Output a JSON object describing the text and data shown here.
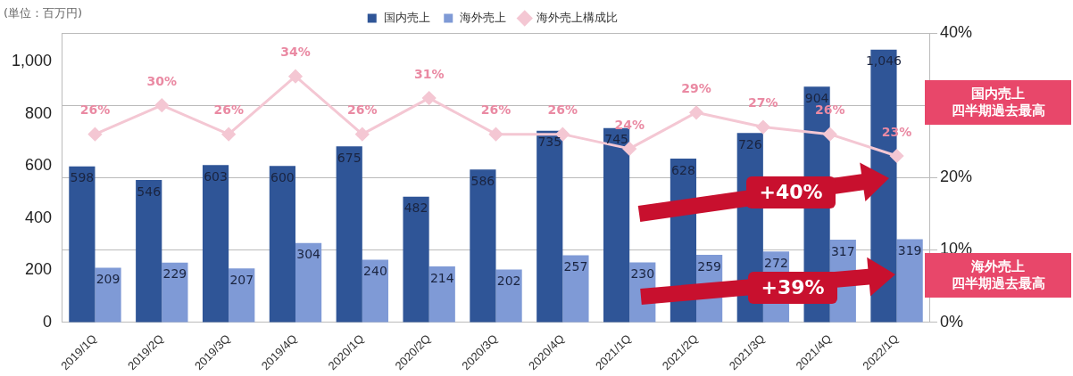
{
  "chart_data": {
    "type": "bar",
    "ylabel": "(単位：百万円)",
    "categories": [
      "2019/1Q",
      "2019/2Q",
      "2019/3Q",
      "2019/4Q",
      "2020/1Q",
      "2020/2Q",
      "2020/3Q",
      "2020/4Q",
      "2021/1Q",
      "2021/2Q",
      "2021/3Q",
      "2021/4Q",
      "2022/1Q"
    ],
    "series": [
      {
        "name": "国内売上",
        "color": "#2f5597",
        "values": [
          598,
          546,
          603,
          600,
          675,
          482,
          586,
          735,
          745,
          628,
          726,
          904,
          1046
        ],
        "value_labels": [
          "598",
          "546",
          "603",
          "600",
          "675",
          "482",
          "586",
          "735",
          "745",
          "628",
          "726",
          "904",
          "1,046"
        ]
      },
      {
        "name": "海外売上",
        "color": "#7f9ad6",
        "values": [
          209,
          229,
          207,
          304,
          240,
          214,
          202,
          257,
          230,
          259,
          272,
          317,
          319
        ],
        "value_labels": [
          "209",
          "229",
          "207",
          "304",
          "240",
          "214",
          "202",
          "257",
          "230",
          "259",
          "272",
          "317",
          "319"
        ]
      },
      {
        "name": "海外売上構成比",
        "type": "line",
        "axis": "y2",
        "color": "#f4c7d3",
        "marker": "diamond",
        "values": [
          26,
          30,
          26,
          34,
          26,
          31,
          26,
          26,
          24,
          29,
          27,
          26,
          23
        ],
        "value_labels": [
          "26%",
          "30%",
          "26%",
          "34%",
          "26%",
          "31%",
          "26%",
          "26%",
          "24%",
          "29%",
          "27%",
          "26%",
          "23%"
        ]
      }
    ],
    "ylim": [
      0,
      1110
    ],
    "yticks": [
      0,
      200,
      400,
      600,
      800,
      {
        "value": 1000,
        "label": "1,000"
      }
    ],
    "y2lim": [
      0,
      40
    ],
    "y2ticks": [
      {
        "value": 0,
        "label": "0%"
      },
      {
        "value": 10,
        "label": "10%"
      },
      {
        "value": 20,
        "label": "20%"
      },
      {
        "value": 30,
        "label": null
      },
      {
        "value": 40,
        "label": "40%"
      }
    ],
    "grid": true,
    "legend": "top",
    "annotations": [
      "+40%",
      "+39%",
      "国内売上",
      "四半期過去最高",
      "海外売上",
      "四半期過去最高"
    ]
  }
}
